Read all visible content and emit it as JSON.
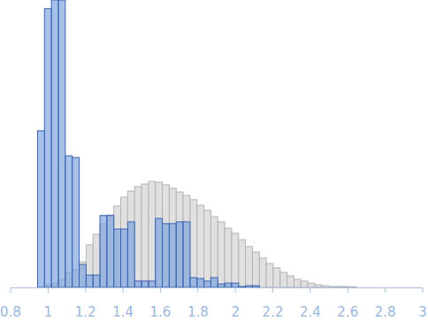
{
  "chart_data": {
    "type": "histogram",
    "bins": [
      0.944,
      0.981,
      1.018,
      1.055,
      1.092,
      1.129,
      1.166,
      1.203,
      1.24,
      1.277,
      1.314,
      1.351,
      1.388,
      1.425,
      1.462,
      1.499,
      1.536,
      1.573,
      1.61,
      1.647,
      1.684,
      1.721,
      1.758,
      1.795,
      1.832,
      1.869,
      1.906,
      1.943,
      1.98,
      2.017,
      2.054,
      2.091,
      2.128,
      2.165,
      2.202,
      2.239,
      2.276,
      2.313,
      2.35,
      2.387,
      2.424,
      2.461,
      2.498,
      2.535,
      2.572,
      2.609,
      2.646
    ],
    "series": [
      {
        "color": "#e0e0e0",
        "values": [
          0,
          0.9,
          1.5,
          2.8,
          5.2,
          6.2,
          8.9,
          14.8,
          18.5,
          22.2,
          25.2,
          28.3,
          31.4,
          33.5,
          35.1,
          36,
          36.9,
          36.6,
          35.7,
          34.5,
          33.2,
          32,
          30.5,
          28.6,
          26.8,
          24.6,
          22.8,
          20.6,
          18.8,
          16.6,
          14.2,
          12.3,
          10.2,
          8.3,
          6.8,
          5.2,
          4,
          2.8,
          2.2,
          1.5,
          0.9,
          0.6,
          0.3,
          0.3,
          0.3,
          0.2
        ]
      },
      {
        "color": "#7a9fdc",
        "values": [
          54.5,
          97,
          100,
          100,
          45.8,
          45.2,
          8,
          4.3,
          4.3,
          25,
          25,
          20.3,
          20.3,
          22.8,
          2.2,
          2.2,
          2.2,
          24,
          22.2,
          22.2,
          22.8,
          22.8,
          3.4,
          3.1,
          2.2,
          3.4,
          1.2,
          1.5,
          1.5,
          0.3,
          0.6,
          0.6,
          0,
          0,
          0,
          0,
          0,
          0,
          0,
          0,
          0,
          0,
          0,
          0,
          0,
          0
        ]
      }
    ],
    "xlim": [
      0.8,
      3
    ],
    "xticks": [
      0.8,
      1,
      1.2,
      1.4,
      1.6,
      1.8,
      2,
      2.2,
      2.4,
      2.6,
      2.8,
      3
    ],
    "ylim": [
      0,
      100
    ],
    "tick_labels": "x"
  }
}
